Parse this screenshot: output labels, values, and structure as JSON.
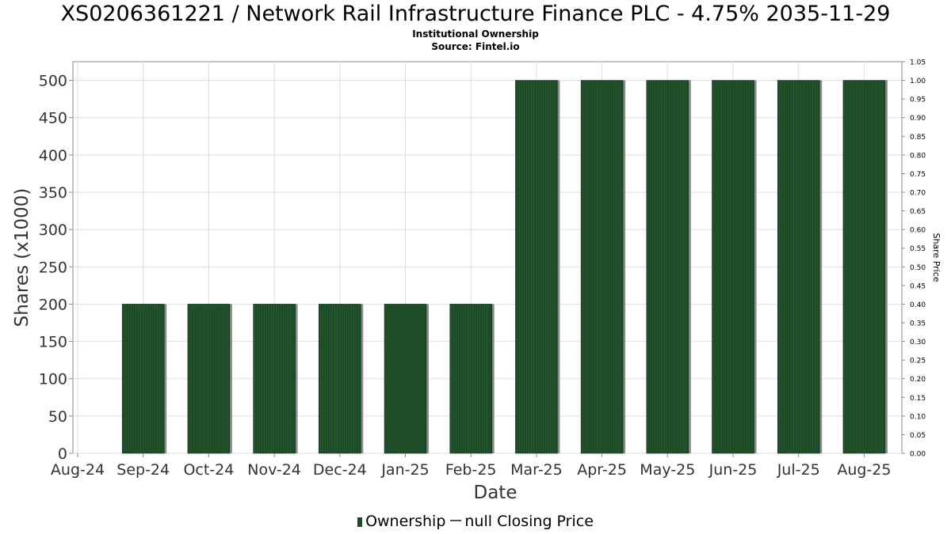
{
  "title": "XS0206361221 / Network Rail Infrastructure Finance PLC - 4.75% 2035-11-29",
  "subtitle": "Institutional Ownership",
  "source": "Source: Fintel.io",
  "colors": {
    "bar": "#1d4a26",
    "bar_shadow": "#8a8a8a",
    "grid": "#dddddd",
    "axis": "#888888"
  },
  "legend": {
    "ownership": "Ownership",
    "price": "null Closing Price"
  },
  "chart_data": {
    "type": "bar",
    "xlabel": "Date",
    "ylabel": "Shares (x1000)",
    "y2label": "Share Price",
    "x_ticks": [
      "Aug-24",
      "Sep-24",
      "Oct-24",
      "Nov-24",
      "Dec-24",
      "Jan-25",
      "Feb-25",
      "Mar-25",
      "Apr-25",
      "May-25",
      "Jun-25",
      "Jul-25",
      "Aug-25"
    ],
    "categories": [
      "Sep-24",
      "Oct-24",
      "Nov-24",
      "Dec-24",
      "Jan-25",
      "Feb-25",
      "Mar-25",
      "Apr-25",
      "May-25",
      "Jun-25",
      "Jul-25",
      "Aug-25"
    ],
    "series": [
      {
        "name": "Ownership",
        "values": [
          200,
          200,
          200,
          200,
          200,
          200,
          500,
          500,
          500,
          500,
          500,
          500
        ]
      }
    ],
    "ylim": [
      0,
      525
    ],
    "yticks": [
      0,
      50,
      100,
      150,
      200,
      250,
      300,
      350,
      400,
      450,
      500
    ],
    "y2lim": [
      0,
      1.05
    ],
    "y2ticks": [
      "0.00",
      "0.05",
      "0.10",
      "0.15",
      "0.20",
      "0.25",
      "0.30",
      "0.35",
      "0.40",
      "0.45",
      "0.50",
      "0.55",
      "0.60",
      "0.65",
      "0.70",
      "0.75",
      "0.80",
      "0.85",
      "0.90",
      "0.95",
      "1.00",
      "1.05"
    ],
    "grid": true,
    "legend_position": "bottom"
  }
}
